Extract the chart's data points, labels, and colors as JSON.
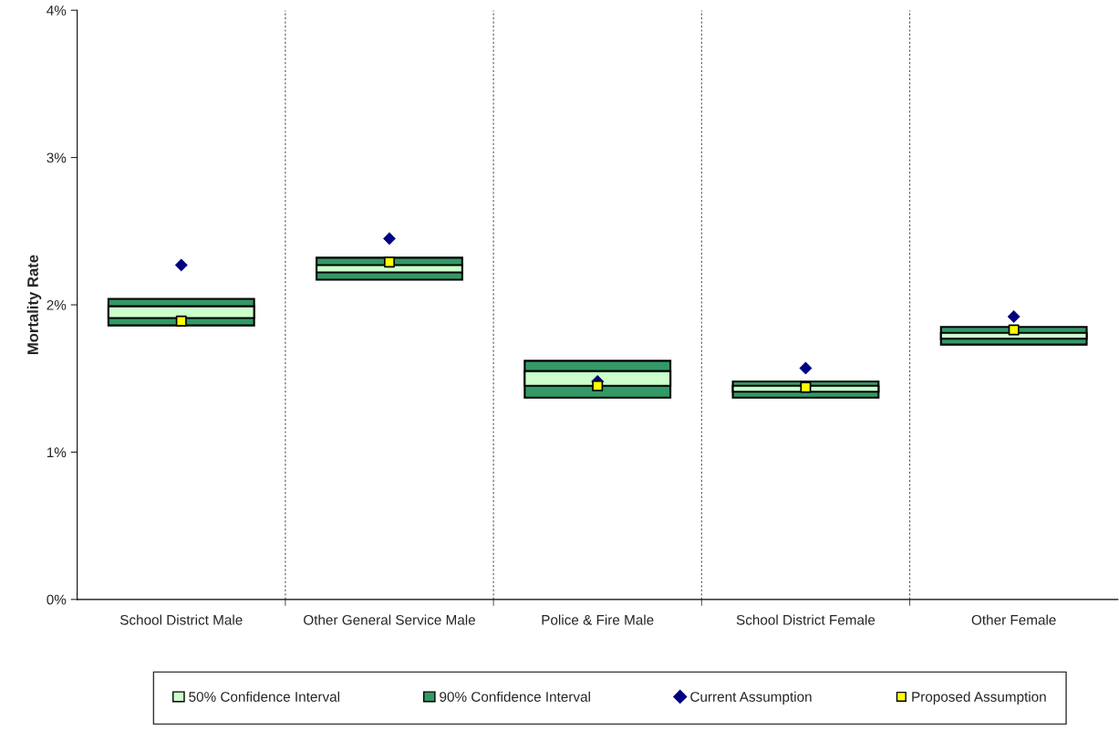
{
  "chart_data": {
    "type": "bar",
    "ylabel": "Mortality Rate",
    "categories": [
      "School District Male",
      "Other General Service Male",
      "Police & Fire Male",
      "School District Female",
      "Other Female"
    ],
    "series": [
      {
        "name": "50% Confidence Interval",
        "color": "#ccffcc",
        "base": [
          1.91,
          2.22,
          1.45,
          1.41,
          1.77
        ],
        "values": [
          0.08,
          0.05,
          0.1,
          0.04,
          0.04
        ]
      },
      {
        "name": "90% Confidence Interval",
        "color": "#339966",
        "base": [
          1.86,
          2.17,
          1.37,
          1.37,
          1.73
        ],
        "values": [
          0.18,
          0.15,
          0.25,
          0.11,
          0.12
        ]
      },
      {
        "name": "Current Assumption",
        "type": "scatter",
        "marker": "diamond",
        "color": "#000080",
        "values": [
          2.27,
          2.45,
          1.48,
          1.57,
          1.92
        ]
      },
      {
        "name": "Proposed Assumption",
        "type": "scatter",
        "marker": "square",
        "color": "#ffff00",
        "values": [
          1.89,
          2.29,
          1.45,
          1.44,
          1.83
        ]
      }
    ],
    "ylim": [
      0,
      4
    ],
    "yticks": [
      {
        "value": 0,
        "label": "0%"
      },
      {
        "value": 1,
        "label": "1%"
      },
      {
        "value": 2,
        "label": "2%"
      },
      {
        "value": 3,
        "label": "3%"
      },
      {
        "value": 4,
        "label": "4%"
      }
    ],
    "grid": "x",
    "legend": "bottom"
  }
}
